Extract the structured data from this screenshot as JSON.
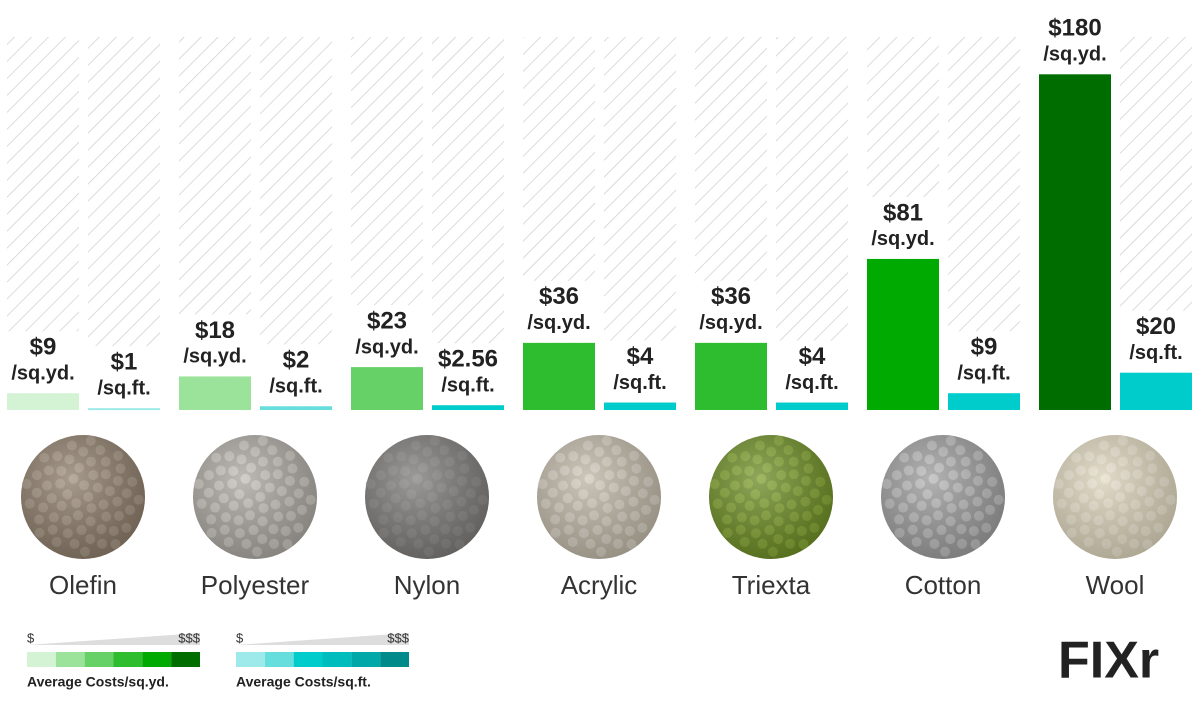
{
  "chart_data": {
    "type": "bar",
    "categories": [
      "Olefin",
      "Polyester",
      "Nylon",
      "Acrylic",
      "Triexta",
      "Cotton",
      "Wool"
    ],
    "ylim": [
      0,
      200
    ],
    "series": [
      {
        "name": "Average Costs/sq.yd.",
        "unit": "/sq.yd.",
        "values": [
          9,
          18,
          23,
          36,
          36,
          81,
          180
        ],
        "value_labels": [
          "$9",
          "$18",
          "$23",
          "$36",
          "$36",
          "$81",
          "$180"
        ],
        "colors": [
          "#d4f2d4",
          "#9be39b",
          "#66d166",
          "#2ebd2e",
          "#2ebd2e",
          "#00aa00",
          "#006d00"
        ],
        "scale_colors": [
          "#d4f2d4",
          "#9be39b",
          "#66d166",
          "#2ebd2e",
          "#00aa00",
          "#006d00"
        ]
      },
      {
        "name": "Average Costs/sq.ft.",
        "unit": "/sq.ft.",
        "values": [
          1,
          2,
          2.56,
          4,
          4,
          9,
          20
        ],
        "value_labels": [
          "$1",
          "$2",
          "$2.56",
          "$4",
          "$4",
          "$9",
          "$20"
        ],
        "colors": [
          "#9eeaea",
          "#66dede",
          "#00cccc",
          "#00cccc",
          "#00cccc",
          "#00cccc",
          "#00cccc"
        ],
        "scale_colors": [
          "#9eeaea",
          "#66dede",
          "#00cccc",
          "#00bdbd",
          "#00a8a8",
          "#008a8a"
        ]
      }
    ],
    "legend": [
      {
        "low": "$",
        "high": "$$$"
      },
      {
        "low": "$",
        "high": "$$$"
      }
    ],
    "logo": "FIXr"
  }
}
